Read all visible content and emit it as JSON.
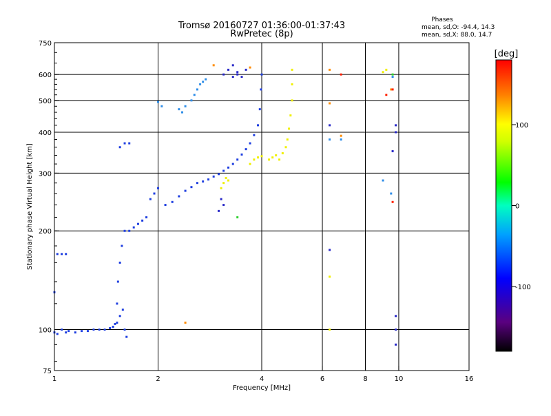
{
  "header": {
    "title": "Tromsø 20160727 01:36:00-01:37:43",
    "subtitle": "RwPretec (8p)",
    "phases_title": "Phases",
    "phases_o": "mean, sd,O: -94.4, 14.3",
    "phases_x": "mean, sd,X:  88.0, 14.7"
  },
  "chart_data": {
    "type": "scatter",
    "title": "Tromsø 20160727 01:36:00-01:37:43",
    "subtitle": "RwPretec (8p)",
    "xlabel": "Frequency [MHz]",
    "ylabel": "Stationary phase Virtual Height [km]",
    "x_scale": "log",
    "y_scale": "log",
    "xlim": [
      1,
      16
    ],
    "ylim": [
      75,
      750
    ],
    "x_ticks": [
      1,
      2,
      4,
      6,
      8,
      10,
      16
    ],
    "y_ticks": [
      75,
      100,
      200,
      300,
      400,
      500,
      600,
      750
    ],
    "x_gridlines": [
      2,
      4,
      6,
      8,
      10
    ],
    "y_gridlines": [
      100,
      200,
      300,
      400,
      500,
      600
    ],
    "grid": true,
    "colorbar": {
      "label": "[deg]",
      "range": [
        -180,
        180
      ],
      "ticks": [
        -100,
        0,
        100
      ]
    },
    "colors": {
      "blue": "#1f3fe0",
      "dark_blue": "#2a2ac8",
      "light_blue": "#2f8ee8",
      "yellow": "#f0f000",
      "orange": "#ff8c00",
      "red": "#ff2000",
      "green": "#30d030"
    },
    "series": [
      {
        "color": "blue",
        "points": [
          [
            1.0,
            98
          ],
          [
            1.02,
            97
          ],
          [
            1.05,
            100
          ],
          [
            1.08,
            98
          ],
          [
            1.1,
            99
          ],
          [
            1.15,
            98
          ],
          [
            1.2,
            99
          ],
          [
            1.25,
            99
          ],
          [
            1.3,
            100
          ],
          [
            1.35,
            100
          ],
          [
            1.4,
            100
          ],
          [
            1.45,
            101
          ],
          [
            1.48,
            102
          ],
          [
            1.5,
            104
          ],
          [
            1.52,
            120
          ],
          [
            1.53,
            140
          ],
          [
            1.55,
            160
          ],
          [
            1.57,
            180
          ],
          [
            1.6,
            200
          ],
          [
            1.65,
            200
          ],
          [
            1.7,
            205
          ],
          [
            1.75,
            210
          ],
          [
            1.8,
            215
          ],
          [
            1.85,
            220
          ],
          [
            1.9,
            250
          ],
          [
            1.95,
            260
          ],
          [
            2.0,
            270
          ],
          [
            2.1,
            240
          ],
          [
            2.2,
            245
          ],
          [
            2.3,
            255
          ],
          [
            2.4,
            265
          ],
          [
            2.5,
            272
          ],
          [
            2.6,
            280
          ],
          [
            2.7,
            283
          ],
          [
            2.8,
            287
          ],
          [
            2.9,
            293
          ],
          [
            3.0,
            298
          ],
          [
            3.1,
            305
          ],
          [
            3.2,
            312
          ],
          [
            3.3,
            320
          ],
          [
            3.4,
            330
          ],
          [
            3.5,
            342
          ],
          [
            3.6,
            355
          ],
          [
            3.7,
            370
          ],
          [
            3.8,
            392
          ],
          [
            3.9,
            420
          ],
          [
            3.95,
            470
          ],
          [
            3.98,
            540
          ],
          [
            4.0,
            600
          ],
          [
            1.0,
            130
          ],
          [
            1.02,
            170
          ],
          [
            1.05,
            170
          ],
          [
            1.08,
            170
          ],
          [
            1.55,
            360
          ],
          [
            1.6,
            370
          ],
          [
            1.65,
            370
          ],
          [
            1.52,
            105
          ],
          [
            1.55,
            110
          ],
          [
            1.58,
            115
          ],
          [
            1.6,
            100
          ],
          [
            1.62,
            95
          ]
        ]
      },
      {
        "color": "dark_blue",
        "points": [
          [
            3.1,
            600
          ],
          [
            3.2,
            620
          ],
          [
            3.3,
            640
          ],
          [
            3.4,
            610
          ],
          [
            3.5,
            590
          ],
          [
            3.6,
            620
          ],
          [
            3.3,
            590
          ],
          [
            3.4,
            600
          ],
          [
            3.0,
            230
          ],
          [
            3.05,
            250
          ],
          [
            3.1,
            240
          ],
          [
            9.8,
            100
          ],
          [
            9.8,
            110
          ],
          [
            9.8,
            90
          ],
          [
            9.6,
            350
          ],
          [
            9.8,
            400
          ],
          [
            9.8,
            420
          ],
          [
            6.3,
            420
          ],
          [
            6.3,
            175
          ]
        ]
      },
      {
        "color": "light_blue",
        "points": [
          [
            2.5,
            500
          ],
          [
            2.55,
            520
          ],
          [
            2.6,
            540
          ],
          [
            2.65,
            560
          ],
          [
            2.7,
            570
          ],
          [
            2.75,
            580
          ],
          [
            2.3,
            470
          ],
          [
            2.35,
            460
          ],
          [
            2.4,
            480
          ],
          [
            2.0,
            495
          ],
          [
            2.05,
            480
          ],
          [
            6.3,
            380
          ],
          [
            6.8,
            380
          ],
          [
            9.0,
            285
          ],
          [
            9.5,
            260
          ],
          [
            9.6,
            590
          ]
        ]
      },
      {
        "color": "yellow",
        "points": [
          [
            4.5,
            330
          ],
          [
            4.6,
            345
          ],
          [
            4.7,
            360
          ],
          [
            4.75,
            380
          ],
          [
            4.8,
            410
          ],
          [
            4.85,
            450
          ],
          [
            4.9,
            500
          ],
          [
            4.9,
            560
          ],
          [
            4.9,
            620
          ],
          [
            4.2,
            330
          ],
          [
            4.3,
            335
          ],
          [
            4.4,
            340
          ],
          [
            3.7,
            320
          ],
          [
            3.8,
            330
          ],
          [
            3.9,
            335
          ],
          [
            4.0,
            338
          ],
          [
            3.05,
            270
          ],
          [
            3.1,
            280
          ],
          [
            3.15,
            290
          ],
          [
            3.2,
            285
          ],
          [
            6.3,
            145
          ],
          [
            6.3,
            100
          ],
          [
            9.0,
            610
          ],
          [
            9.2,
            620
          ]
        ]
      },
      {
        "color": "orange",
        "points": [
          [
            2.9,
            640
          ],
          [
            3.7,
            630
          ],
          [
            6.3,
            490
          ],
          [
            6.3,
            620
          ],
          [
            6.8,
            390
          ],
          [
            9.5,
            540
          ],
          [
            2.4,
            105
          ]
        ]
      },
      {
        "color": "red",
        "points": [
          [
            9.2,
            520
          ],
          [
            9.6,
            245
          ],
          [
            6.8,
            600
          ],
          [
            9.6,
            540
          ]
        ]
      },
      {
        "color": "green",
        "points": [
          [
            3.4,
            220
          ],
          [
            9.6,
            600
          ]
        ]
      }
    ]
  }
}
